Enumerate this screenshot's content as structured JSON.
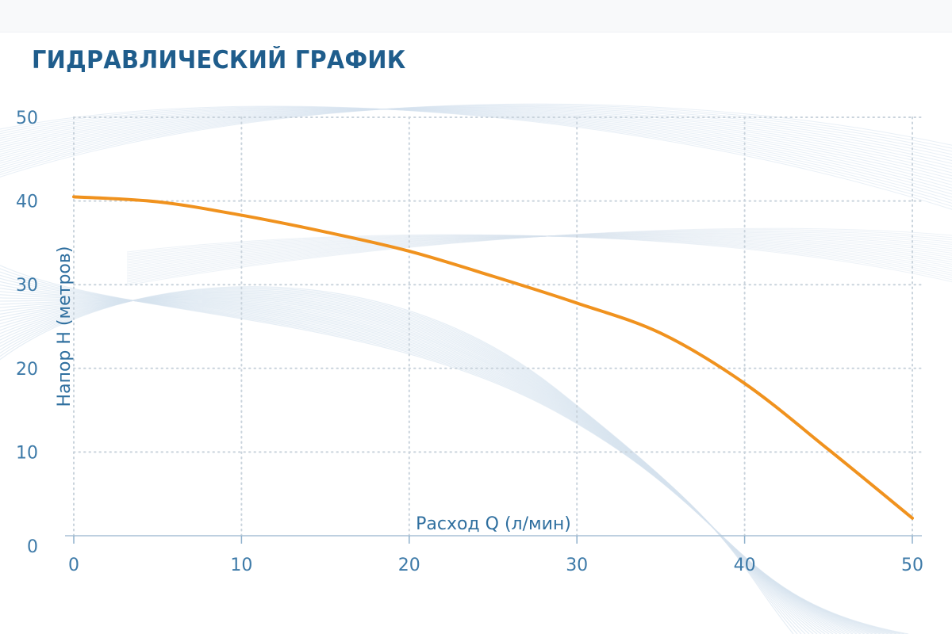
{
  "chart_data": {
    "type": "line",
    "title": "ГИДРАВЛИЧЕСКИЙ ГРАФИК",
    "xlabel": "Расход Q (л/мин)",
    "ylabel": "Напор H (метров)",
    "xlim": [
      0,
      50
    ],
    "ylim": [
      0,
      50
    ],
    "x_ticks": [
      "0",
      "10",
      "20",
      "30",
      "40",
      "50"
    ],
    "y_ticks": [
      "0",
      "10",
      "20",
      "30",
      "40",
      "50"
    ],
    "grid": true,
    "series": [
      {
        "x": [
          0,
          5,
          10,
          15,
          20,
          25,
          30,
          35,
          40,
          45,
          50
        ],
        "values": [
          40.5,
          39.9,
          38.3,
          36.3,
          34.0,
          31.0,
          27.8,
          24.2,
          18.2,
          10.3,
          2.1
        ]
      }
    ]
  },
  "colors": {
    "title": "#1f5d8c",
    "curve": "#f0921e",
    "tick_text": "#3d7aa8",
    "axis_text": "#2f6f9f",
    "grid": "#c9d3dc",
    "background_waves": "#d6e2ee"
  }
}
